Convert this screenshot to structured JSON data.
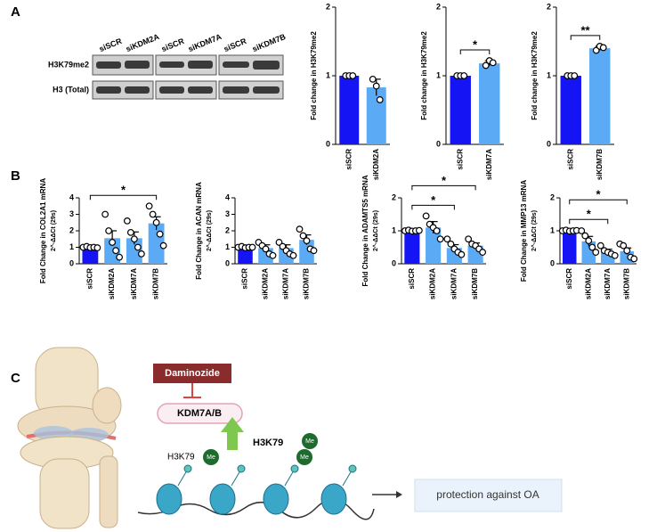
{
  "panels": [
    "A",
    "B",
    "C"
  ],
  "blot": {
    "lanes": [
      "siSCR",
      "siKDM2A",
      "siSCR",
      "siKDM7A",
      "siSCR",
      "siKDM7B"
    ],
    "rows": [
      "H3K79me2",
      "H3 (Total)"
    ]
  },
  "diagram": {
    "inhibitor": "Daminozide",
    "target": "KDM7A/B",
    "mark": "H3K79",
    "mark_me": "Me",
    "tail": "H3K79",
    "tail_me": [
      "Me",
      "Me"
    ],
    "outcome": "protection against OA"
  },
  "chart_data": [
    {
      "type": "bar",
      "ylabel": "Fold change in H3K79me2",
      "categories": [
        "siSCR",
        "siKDM2A"
      ],
      "colors": [
        "#1414f5",
        "#5aaaf5"
      ],
      "values": [
        1,
        0.83
      ],
      "errors": [
        0,
        0.12
      ],
      "points": [
        [
          1,
          1,
          1
        ],
        [
          0.95,
          0.85,
          0.65
        ]
      ],
      "ylim": [
        0,
        2
      ],
      "yticks": [
        0,
        1,
        2
      ],
      "significance": []
    },
    {
      "type": "bar",
      "ylabel": "Fold change in H3K79me2",
      "categories": [
        "siSCR",
        "siKDM7A"
      ],
      "colors": [
        "#1414f5",
        "#5aaaf5"
      ],
      "values": [
        1,
        1.18
      ],
      "errors": [
        0,
        0.04
      ],
      "points": [
        [
          1,
          1,
          1
        ],
        [
          1.15,
          1.22,
          1.19
        ]
      ],
      "ylim": [
        0,
        2
      ],
      "yticks": [
        0,
        1,
        2
      ],
      "significance": [
        {
          "from": 0,
          "to": 1,
          "label": "*"
        }
      ]
    },
    {
      "type": "bar",
      "ylabel": "Fold change in H3K79me2",
      "categories": [
        "siSCR",
        "siKDM7B"
      ],
      "colors": [
        "#1414f5",
        "#5aaaf5"
      ],
      "values": [
        1,
        1.4
      ],
      "errors": [
        0,
        0.03
      ],
      "points": [
        [
          1,
          1,
          1
        ],
        [
          1.37,
          1.43,
          1.41
        ]
      ],
      "ylim": [
        0,
        2
      ],
      "yticks": [
        0,
        1,
        2
      ],
      "significance": [
        {
          "from": 0,
          "to": 1,
          "label": "**"
        }
      ]
    },
    {
      "type": "bar",
      "ylabel": "Fold Change in COL2A1 mRNA",
      "ylabel2": "2^-ΔΔCt (29s)",
      "categories": [
        "siSCR",
        "siKDM2A",
        "siKDM7A",
        "siKDM7B"
      ],
      "colors": [
        "#1414f5",
        "#5aaaf5",
        "#5aaaf5",
        "#5aaaf5"
      ],
      "values": [
        1,
        1.55,
        1.55,
        2.45
      ],
      "errors": [
        0.05,
        0.45,
        0.38,
        0.4
      ],
      "points": [
        [
          1,
          1.05,
          0.98,
          1,
          0.97
        ],
        [
          3,
          2,
          1.3,
          0.8,
          0.4
        ],
        [
          2.6,
          1.9,
          1.5,
          1,
          0.6
        ],
        [
          3.5,
          3,
          2.5,
          1.8,
          1.1
        ]
      ],
      "ylim": [
        0,
        4
      ],
      "yticks": [
        0,
        1,
        2,
        3,
        4
      ],
      "significance": [
        {
          "from": 0,
          "to": 3,
          "label": "*"
        }
      ]
    },
    {
      "type": "bar",
      "ylabel": "Fold Change in ACAN mRNA",
      "ylabel2": "2^-ΔΔCt (29s)",
      "categories": [
        "siSCR",
        "siKDM2A",
        "siKDM7A",
        "siKDM7B"
      ],
      "colors": [
        "#1414f5",
        "#5aaaf5",
        "#5aaaf5",
        "#5aaaf5"
      ],
      "values": [
        1,
        0.95,
        0.95,
        1.45
      ],
      "errors": [
        0.05,
        0.2,
        0.2,
        0.3
      ],
      "points": [
        [
          1,
          1.05,
          0.97,
          1,
          1
        ],
        [
          1.3,
          1.1,
          0.9,
          0.6,
          0.5
        ],
        [
          1.3,
          1.05,
          0.8,
          0.6,
          0.5
        ],
        [
          2.1,
          1.7,
          1.4,
          0.9,
          0.8
        ]
      ],
      "ylim": [
        0,
        4
      ],
      "yticks": [
        0,
        1,
        2,
        3,
        4
      ],
      "significance": []
    },
    {
      "type": "bar",
      "ylabel": "Fold Change in ADAMTS5 mRNA",
      "ylabel2": "2^-ΔΔCt (29s)",
      "categories": [
        "siSCR",
        "siKDM2A",
        "siKDM7A",
        "siKDM7B"
      ],
      "colors": [
        "#1414f5",
        "#5aaaf5",
        "#5aaaf5",
        "#5aaaf5"
      ],
      "values": [
        1,
        1.1,
        0.48,
        0.55
      ],
      "errors": [
        0.02,
        0.18,
        0.1,
        0.08
      ],
      "points": [
        [
          1,
          1.02,
          0.99,
          1,
          1.01
        ],
        [
          1.45,
          1.2,
          1.1,
          1,
          0.75
        ],
        [
          0.75,
          0.6,
          0.45,
          0.35,
          0.28
        ],
        [
          0.75,
          0.6,
          0.55,
          0.45,
          0.35
        ]
      ],
      "ylim": [
        0,
        2
      ],
      "yticks": [
        0,
        1,
        2
      ],
      "significance": [
        {
          "from": 0,
          "to": 2,
          "label": "*"
        },
        {
          "from": 0,
          "to": 3,
          "label": "*"
        }
      ]
    },
    {
      "type": "bar",
      "ylabel": "Fold Change in MMP13 mRNA",
      "ylabel2": "2^-ΔΔCt (29s)",
      "categories": [
        "siSCR",
        "siKDM2A",
        "siKDM7A",
        "siKDM7B"
      ],
      "colors": [
        "#1414f5",
        "#5aaaf5",
        "#5aaaf5",
        "#5aaaf5"
      ],
      "values": [
        1,
        0.68,
        0.36,
        0.38
      ],
      "errors": [
        0.02,
        0.15,
        0.08,
        0.1
      ],
      "points": [
        [
          1,
          1.02,
          0.99,
          1,
          1.01
        ],
        [
          1,
          0.85,
          0.7,
          0.5,
          0.35
        ],
        [
          0.55,
          0.4,
          0.35,
          0.3,
          0.25
        ],
        [
          0.6,
          0.55,
          0.4,
          0.2,
          0.15
        ]
      ],
      "ylim": [
        0,
        2
      ],
      "yticks": [
        0,
        1,
        2
      ],
      "significance": [
        {
          "from": 0,
          "to": 2,
          "label": "*"
        },
        {
          "from": 0,
          "to": 3,
          "label": "*"
        }
      ]
    }
  ]
}
